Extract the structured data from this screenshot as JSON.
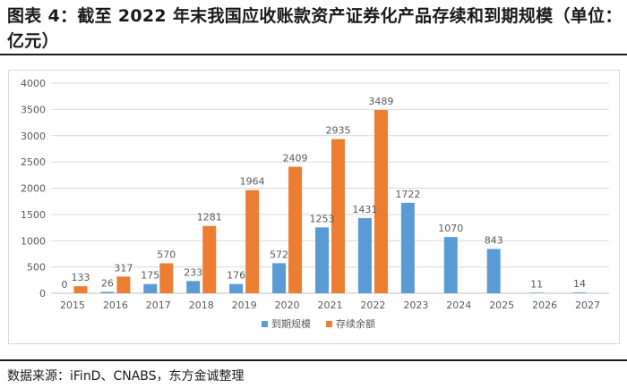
{
  "title": "图表 4：截至 2022 年末我国应收账款资产证券化产品存续和到期规模（单位：亿元）",
  "source": "数据来源：iFinD、CNABS，东方金诚整理",
  "colors": {
    "maturity": "#5b9bd5",
    "outstanding": "#ed7d31",
    "grid": "#d9d9d9",
    "axis_text": "#595959"
  },
  "chart_data": {
    "type": "bar",
    "title": "",
    "xlabel": "",
    "ylabel": "",
    "ylim": [
      0,
      4000
    ],
    "yticks": [
      0,
      500,
      1000,
      1500,
      2000,
      2500,
      3000,
      3500,
      4000
    ],
    "categories": [
      "2015",
      "2016",
      "2017",
      "2018",
      "2019",
      "2020",
      "2021",
      "2022",
      "2023",
      "2024",
      "2025",
      "2026",
      "2027"
    ],
    "series": [
      {
        "name": "到期规模",
        "color": "#5b9bd5",
        "values": [
          0,
          26,
          175,
          233,
          176,
          572,
          1253,
          1431,
          1722,
          1070,
          843,
          11,
          14
        ]
      },
      {
        "name": "存续余额",
        "color": "#ed7d31",
        "values": [
          133,
          317,
          570,
          1281,
          1964,
          2409,
          2935,
          3489,
          null,
          null,
          null,
          null,
          null
        ]
      }
    ],
    "legend_position": "bottom-center",
    "grid": true
  }
}
